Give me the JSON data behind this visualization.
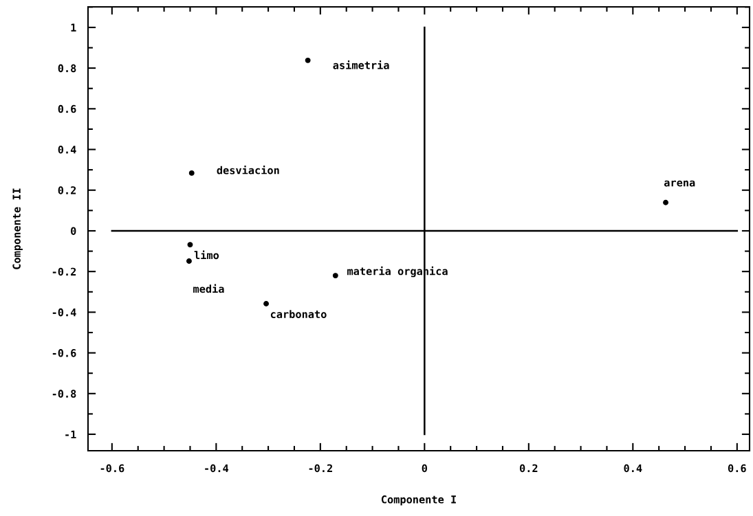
{
  "chart_data": {
    "type": "scatter",
    "xlabel": "Componente I",
    "ylabel": "Componente II",
    "series": [
      {
        "x": [
          -0.224,
          -0.447,
          0.463,
          -0.45,
          -0.452,
          -0.171,
          -0.304
        ],
        "values": [
          0.838,
          0.284,
          0.139,
          -0.068,
          -0.149,
          -0.22,
          -0.358
        ],
        "color": "#000000",
        "marker": "circle"
      },
      {
        "type": "line",
        "x": [
          0,
          0
        ],
        "values": [
          -1,
          1
        ],
        "color": "#000000",
        "marker": "none",
        "line_style": "solid"
      },
      {
        "type": "line",
        "x": [
          -0.6,
          0.6
        ],
        "values": [
          0,
          0
        ],
        "color": "#000000",
        "marker": "none",
        "line_style": "solid"
      }
    ],
    "grid": false,
    "legend": false,
    "xlim": [
      -0.646,
      0.624
    ],
    "ylim": [
      -1.081,
      1.101
    ],
    "xticks": [
      -0.6,
      -0.4,
      -0.2,
      0,
      0.2,
      0.4,
      0.6
    ],
    "yticks": [
      -1,
      -0.8,
      -0.6,
      -0.4,
      -0.2,
      0,
      0.2,
      0.4,
      0.6,
      0.8,
      1
    ],
    "annotations": [
      {
        "text": "asimetria",
        "x": -0.224,
        "y": 0.838
      },
      {
        "text": "desviacion",
        "x": -0.447,
        "y": 0.284
      },
      {
        "text": "arena",
        "x": 0.463,
        "y": 0.139
      },
      {
        "text": "limo",
        "x": -0.45,
        "y": -0.068
      },
      {
        "text": "media",
        "x": -0.452,
        "y": -0.149
      },
      {
        "text": "materia organica",
        "x": -0.171,
        "y": -0.22
      },
      {
        "text": "carbonato",
        "x": -0.304,
        "y": -0.358
      }
    ]
  }
}
